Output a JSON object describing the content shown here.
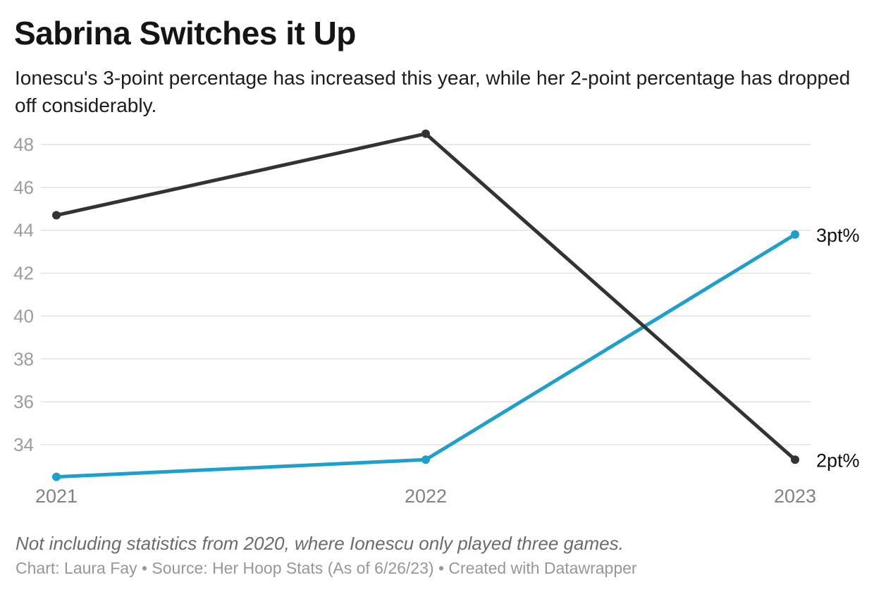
{
  "header": {
    "title": "Sabrina Switches it Up",
    "subtitle": "Ionescu's 3-point percentage has increased this year, while her 2-point percentage has dropped off considerably."
  },
  "footer": {
    "note": "Not including statistics from 2020, where Ionescu only played three games.",
    "credit": "Chart: Laura Fay • Source: Her Hoop Stats (As of 6/26/23) • Created with Datawrapper"
  },
  "colors": {
    "accent_blue": "#1EA0CD",
    "dark_line": "#333333",
    "gridline": "#e2e2e2",
    "y_tick_label": "#9c9c9c",
    "x_tick_label": "#828282",
    "series_label": "#111111"
  },
  "chart_data": {
    "type": "line",
    "title": "Sabrina Switches it Up",
    "x": [
      "2021",
      "2022",
      "2023"
    ],
    "series": [
      {
        "name": "3pt%",
        "color": "#1EA0CD",
        "values": [
          32.5,
          33.3,
          43.8
        ]
      },
      {
        "name": "2pt%",
        "color": "#333333",
        "values": [
          44.7,
          48.5,
          33.3
        ]
      }
    ],
    "yticks": [
      34,
      36,
      38,
      40,
      42,
      44,
      46,
      48
    ],
    "ylim": [
      31.7,
      49.3
    ],
    "xlabel": "",
    "ylabel": "",
    "grid": true,
    "legend_position": "right-of-line-end",
    "notes": "2pt% drawn on top of 3pt% at crossing"
  }
}
